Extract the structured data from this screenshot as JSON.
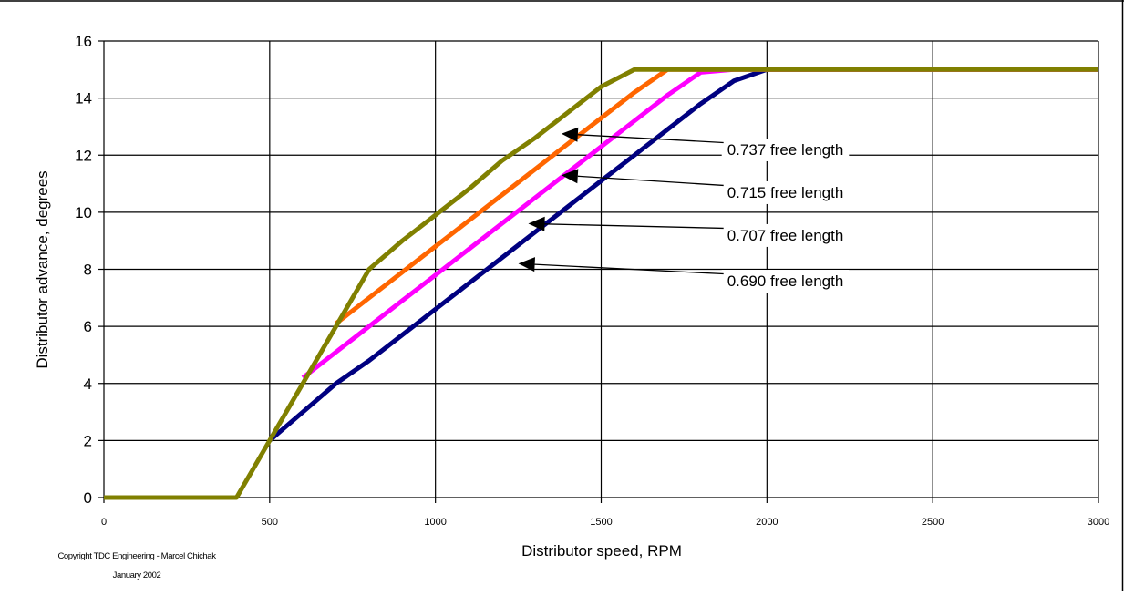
{
  "chart_data": {
    "type": "line",
    "title": "",
    "xlabel": "Distributor speed, RPM",
    "ylabel": "Distributor advance, degrees",
    "xlim": [
      0,
      3000
    ],
    "ylim": [
      0,
      16
    ],
    "xticks": [
      0,
      500,
      1000,
      1500,
      2000,
      2500,
      3000
    ],
    "yticks": [
      0,
      2,
      4,
      6,
      8,
      10,
      12,
      14,
      16
    ],
    "grid": true,
    "legend": "none",
    "series": [
      {
        "color": "#000080",
        "points": [
          [
            500,
            2
          ],
          [
            600,
            3
          ],
          [
            700,
            4
          ],
          [
            800,
            4.8
          ],
          [
            900,
            5.7
          ],
          [
            1000,
            6.6
          ],
          [
            1100,
            7.5
          ],
          [
            1200,
            8.4
          ],
          [
            1300,
            9.3
          ],
          [
            1400,
            10.2
          ],
          [
            1500,
            11.1
          ],
          [
            1600,
            12
          ],
          [
            1700,
            12.9
          ],
          [
            1800,
            13.8
          ],
          [
            1900,
            14.6
          ],
          [
            2000,
            15
          ],
          [
            3000,
            15
          ]
        ]
      },
      {
        "color": "#ff00ff",
        "points": [
          [
            600,
            4.2
          ],
          [
            700,
            5.1
          ],
          [
            800,
            6
          ],
          [
            900,
            6.9
          ],
          [
            1000,
            7.8
          ],
          [
            1100,
            8.7
          ],
          [
            1200,
            9.6
          ],
          [
            1300,
            10.5
          ],
          [
            1400,
            11.4
          ],
          [
            1500,
            12.3
          ],
          [
            1600,
            13.2
          ],
          [
            1700,
            14.1
          ],
          [
            1800,
            14.9
          ],
          [
            1900,
            15
          ],
          [
            3000,
            15
          ]
        ]
      },
      {
        "color": "#ff6600",
        "points": [
          [
            700,
            6.1
          ],
          [
            800,
            7
          ],
          [
            900,
            7.9
          ],
          [
            1000,
            8.8
          ],
          [
            1100,
            9.7
          ],
          [
            1200,
            10.6
          ],
          [
            1300,
            11.5
          ],
          [
            1400,
            12.4
          ],
          [
            1500,
            13.3
          ],
          [
            1600,
            14.2
          ],
          [
            1700,
            15
          ],
          [
            3000,
            15
          ]
        ]
      },
      {
        "color": "#808000",
        "points": [
          [
            0,
            0
          ],
          [
            400,
            0
          ],
          [
            500,
            2
          ],
          [
            600,
            4
          ],
          [
            700,
            6
          ],
          [
            800,
            8
          ],
          [
            900,
            9
          ],
          [
            1000,
            9.9
          ],
          [
            1100,
            10.8
          ],
          [
            1200,
            11.8
          ],
          [
            1300,
            12.6
          ],
          [
            1400,
            13.5
          ],
          [
            1500,
            14.4
          ],
          [
            1600,
            15
          ],
          [
            3000,
            15
          ]
        ]
      }
    ],
    "annotations": [
      {
        "text": "0.737 free length",
        "arrow_to": [
          1380,
          12.75
        ],
        "label_at": [
          1880,
          12.2
        ]
      },
      {
        "text": "0.715 free length",
        "arrow_to": [
          1380,
          11.3
        ],
        "label_at": [
          1880,
          10.7
        ]
      },
      {
        "text": "0.707 free length",
        "arrow_to": [
          1280,
          9.6
        ],
        "label_at": [
          1880,
          9.2
        ]
      },
      {
        "text": "0.690 free length",
        "arrow_to": [
          1250,
          8.2
        ],
        "label_at": [
          1880,
          7.6
        ]
      }
    ]
  },
  "copyright": {
    "line1": "Copyright TDC Engineering - Marcel Chichak",
    "line2": "January 2002"
  }
}
